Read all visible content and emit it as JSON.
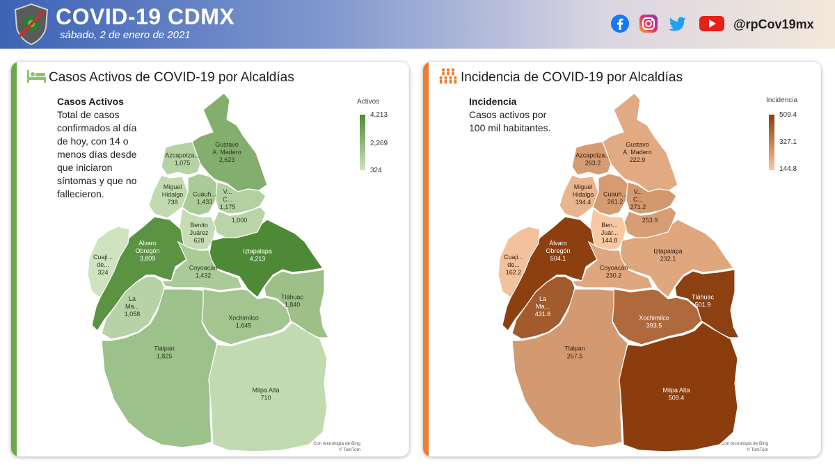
{
  "header": {
    "title": "COVID-19 CDMX",
    "date": "sábado, 2 de enero de 2021",
    "handle": "@rpCov19mx",
    "social_icons": [
      "facebook-icon",
      "instagram-icon",
      "twitter-icon",
      "youtube-icon"
    ]
  },
  "left_panel": {
    "title": "Casos Activos de COVID-19 por Alcaldías",
    "description_title": "Casos Activos",
    "description_lines": [
      "Total de casos",
      "confirmados al día",
      "de hoy, con 14 o",
      "menos días desde",
      "que iniciaron",
      "síntomas y que no",
      "fallecieron."
    ],
    "legend": {
      "title": "Activos",
      "max": "4,213",
      "mid": "2,269",
      "min": "324"
    },
    "attribution": [
      "Con tecnología de Bing",
      "© TomTom"
    ],
    "accent_color": "#6aaa46",
    "color_scale": [
      "#cfe3bf",
      "#4e8a35"
    ]
  },
  "right_panel": {
    "title": "Incidencia de COVID-19 por Alcaldías",
    "description_title": "Incidencia",
    "description_lines": [
      "Casos activos por",
      "100 mil habitantes."
    ],
    "legend": {
      "title": "Incidencia",
      "max": "509.4",
      "mid": "327.1",
      "min": "144.8"
    },
    "attribution": [
      "Con tecnología de Bing",
      "© TomTom"
    ],
    "accent_color": "#ee7b2e",
    "color_scale": [
      "#f8c8a2",
      "#8b3d0d"
    ]
  },
  "alcaldias": [
    {
      "key": "gam",
      "name": [
        "Gustavo",
        "A. Madero"
      ],
      "activos": 2623,
      "activos_label": "2,623",
      "inc_name": [
        "Gustavo",
        "A. Madero"
      ],
      "incidencia": 222.9,
      "incidencia_label": "222.9"
    },
    {
      "key": "azc",
      "name": [
        "Azcapotza..."
      ],
      "activos": 1075,
      "activos_label": "1,075",
      "inc_name": [
        "Azcapotza..."
      ],
      "incidencia": 263.2,
      "incidencia_label": "263.2"
    },
    {
      "key": "mh",
      "name": [
        "Miguel",
        "Hidalgo"
      ],
      "activos": 738,
      "activos_label": "738",
      "inc_name": [
        "Miguel",
        "Hidalgo"
      ],
      "incidencia": 194.4,
      "incidencia_label": "194.4"
    },
    {
      "key": "cua",
      "name": [
        "Cuauh..."
      ],
      "activos": 1433,
      "activos_label": "1,433",
      "inc_name": [
        "Cuauh..."
      ],
      "incidencia": 261.2,
      "incidencia_label": "261.2"
    },
    {
      "key": "vc",
      "name": [
        "V...",
        "C..."
      ],
      "activos": 1175,
      "activos_label": "1,175",
      "inc_name": [
        "V...",
        "C..."
      ],
      "incidencia": 271.2,
      "incidencia_label": "271.2"
    },
    {
      "key": "izc",
      "name": [],
      "activos": 1000,
      "activos_label": "1,000",
      "inc_name": [],
      "incidencia": 253.9,
      "incidencia_label": "253.9"
    },
    {
      "key": "bj",
      "name": [
        "Benito",
        "Juárez"
      ],
      "activos": 628,
      "activos_label": "628",
      "inc_name": [
        "Ben...",
        "Juár..."
      ],
      "incidencia": 144.8,
      "incidencia_label": "144.8"
    },
    {
      "key": "ao",
      "name": [
        "Álvaro",
        "Obregón"
      ],
      "activos": 3809,
      "activos_label": "3,809",
      "inc_name": [
        "Álvaro",
        "Obregón"
      ],
      "incidencia": 504.1,
      "incidencia_label": "504.1"
    },
    {
      "key": "izp",
      "name": [
        "Iztapalapa"
      ],
      "activos": 4213,
      "activos_label": "4,213",
      "inc_name": [
        "Iztapalapa"
      ],
      "incidencia": 232.1,
      "incidencia_label": "232.1"
    },
    {
      "key": "cuj",
      "name": [
        "Cuaji...",
        "de..."
      ],
      "activos": 324,
      "activos_label": "324",
      "inc_name": [
        "Cuaji...",
        "de..."
      ],
      "incidencia": 162.2,
      "incidencia_label": "162.2"
    },
    {
      "key": "coy",
      "name": [
        "Coyoacán"
      ],
      "activos": 1432,
      "activos_label": "1,432",
      "inc_name": [
        "Coyoacán"
      ],
      "incidencia": 230.2,
      "incidencia_label": "230.2"
    },
    {
      "key": "mc",
      "name": [
        "La",
        "Ma..."
      ],
      "activos": 1058,
      "activos_label": "1,058",
      "inc_name": [
        "La",
        "Ma..."
      ],
      "incidencia": 431.6,
      "incidencia_label": "431.6"
    },
    {
      "key": "tlh",
      "name": [
        "Tláhuac"
      ],
      "activos": 1840,
      "activos_label": "1,840",
      "inc_name": [
        "Tláhuac"
      ],
      "incidencia": 501.9,
      "incidencia_label": "501.9"
    },
    {
      "key": "xoc",
      "name": [
        "Xochimilco"
      ],
      "activos": 1645,
      "activos_label": "1,645",
      "inc_name": [
        "Xochimilco"
      ],
      "incidencia": 393.5,
      "incidencia_label": "393.5"
    },
    {
      "key": "tlp",
      "name": [
        "Tlalpan"
      ],
      "activos": 1825,
      "activos_label": "1,825",
      "inc_name": [
        "Tlalpan"
      ],
      "incidencia": 267.5,
      "incidencia_label": "267.5"
    },
    {
      "key": "ma",
      "name": [
        "Milpa Alta"
      ],
      "activos": 710,
      "activos_label": "710",
      "inc_name": [
        "Milpa Alta"
      ],
      "incidencia": 509.4,
      "incidencia_label": "509.4"
    }
  ]
}
